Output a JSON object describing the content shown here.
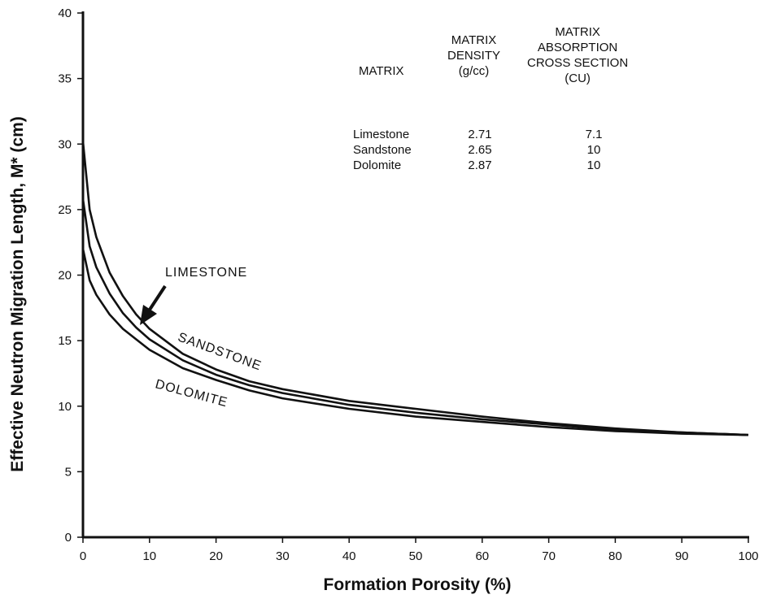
{
  "chart_data": {
    "type": "line",
    "xlabel": "Formation Porosity (%)",
    "ylabel": "Effective Neutron Migration Length, M* (cm)",
    "xlim": [
      0,
      100
    ],
    "ylim": [
      0,
      40
    ],
    "x_ticks": [
      "0",
      "10",
      "20",
      "30",
      "40",
      "50",
      "60",
      "70",
      "80",
      "90",
      "100"
    ],
    "y_ticks": [
      "0",
      "5",
      "10",
      "15",
      "20",
      "25",
      "30",
      "35",
      "40"
    ],
    "grid": false,
    "series": [
      {
        "name": "SANDSTONE",
        "x": [
          0,
          1,
          2,
          4,
          6,
          8,
          10,
          15,
          20,
          25,
          30,
          40,
          50,
          60,
          70,
          80,
          90,
          100
        ],
        "y": [
          30.2,
          25.0,
          22.9,
          20.2,
          18.4,
          17.0,
          15.9,
          14.0,
          12.8,
          11.9,
          11.3,
          10.4,
          9.8,
          9.2,
          8.7,
          8.3,
          8.0,
          7.8
        ]
      },
      {
        "name": "LIMESTONE",
        "x": [
          0,
          1,
          2,
          4,
          6,
          8,
          10,
          15,
          20,
          25,
          30,
          40,
          50,
          60,
          70,
          80,
          90,
          100
        ],
        "y": [
          25.8,
          22.2,
          20.6,
          18.6,
          17.1,
          16.0,
          15.1,
          13.5,
          12.4,
          11.6,
          11.0,
          10.1,
          9.5,
          9.0,
          8.6,
          8.2,
          8.0,
          7.8
        ]
      },
      {
        "name": "DOLOMITE",
        "x": [
          0,
          1,
          2,
          4,
          6,
          8,
          10,
          15,
          20,
          25,
          30,
          40,
          50,
          60,
          70,
          80,
          90,
          100
        ],
        "y": [
          22.0,
          19.6,
          18.5,
          17.0,
          15.9,
          15.1,
          14.3,
          12.9,
          12.0,
          11.2,
          10.6,
          9.8,
          9.2,
          8.8,
          8.4,
          8.1,
          7.9,
          7.8
        ]
      }
    ],
    "curve_labels": [
      "LIMESTONE",
      "SANDSTONE",
      "DOLOMITE"
    ],
    "table": {
      "headers": [
        "MATRIX",
        "MATRIX DENSITY (g/cc)",
        "MATRIX ABSORPTION CROSS SECTION (CU)"
      ],
      "header_lines": [
        [
          "MATRIX"
        ],
        [
          "MATRIX",
          "DENSITY",
          "(g/cc)"
        ],
        [
          "MATRIX",
          "ABSORPTION",
          "CROSS SECTION",
          "(CU)"
        ]
      ],
      "rows": [
        [
          "Limestone",
          "2.71",
          "7.1"
        ],
        [
          "Sandstone",
          "2.65",
          "10"
        ],
        [
          "Dolomite",
          "2.87",
          "10"
        ]
      ]
    }
  }
}
